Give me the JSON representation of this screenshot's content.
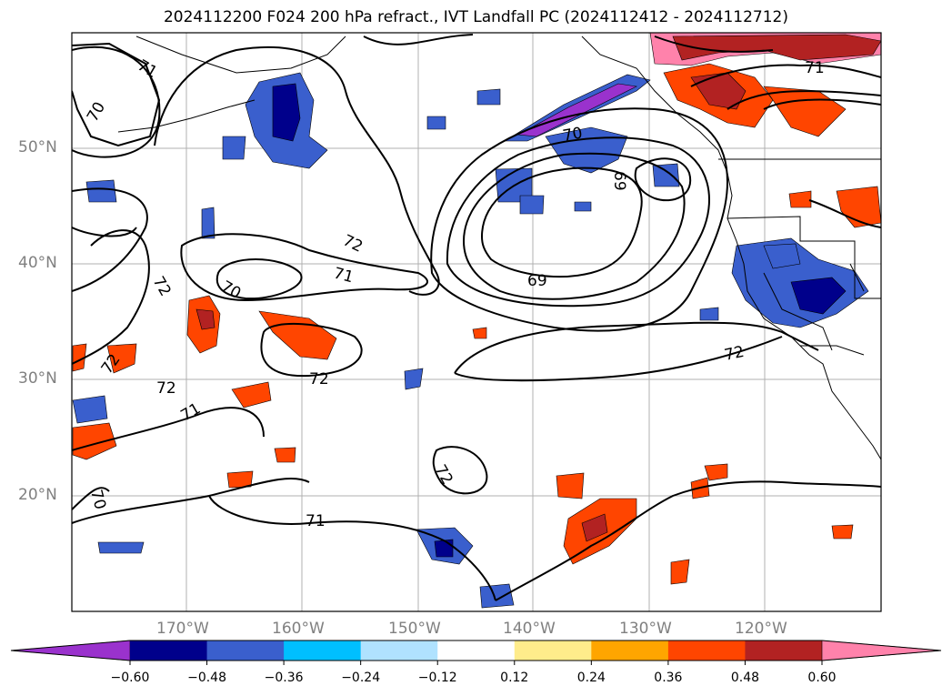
{
  "title": "2024112200 F024 200 hPa refract., IVT Landfall PC (2024112412 - 2024112712)",
  "lat_labels": [
    "50°N",
    "40°N",
    "30°N",
    "20°N"
  ],
  "lon_labels": [
    "170°W",
    "160°W",
    "150°W",
    "140°W",
    "130°W",
    "120°W"
  ],
  "colorbar": {
    "colors": [
      "#9a32cd",
      "#00008b",
      "#3a5fcd",
      "#00bfff",
      "#b0e2ff",
      "#ffffff",
      "#ffec8b",
      "#ffa500",
      "#ff4500",
      "#b22222",
      "#ff82ab"
    ],
    "tick_labels": [
      "−0.60",
      "−0.48",
      "−0.36",
      "−0.24",
      "−0.12",
      "0.12",
      "0.24",
      "0.36",
      "0.48",
      "0.60"
    ]
  },
  "contour_labels": [
    "71",
    "70",
    "72",
    "71",
    "70",
    "72",
    "69",
    "70",
    "69",
    "71",
    "72",
    "72",
    "72",
    "71",
    "70",
    "72",
    "71",
    "72"
  ]
}
